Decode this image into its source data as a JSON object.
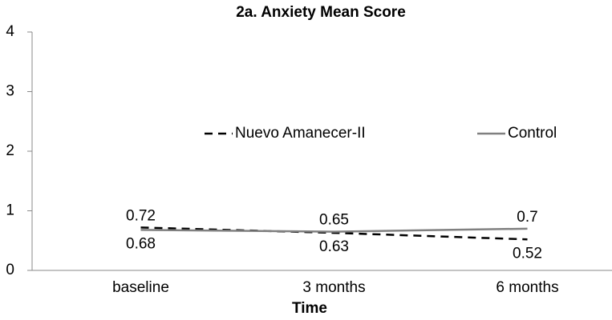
{
  "chart_data": {
    "type": "line",
    "title": "2a. Anxiety Mean Score",
    "x_label": "Time",
    "categories": [
      "baseline",
      "3 months",
      "6 months"
    ],
    "series": [
      {
        "name": "Nuevo Amanecer-II",
        "color": "#000000",
        "linestyle": "dashed",
        "values": [
          0.72,
          0.63,
          0.52
        ]
      },
      {
        "name": "Control",
        "color": "#808080",
        "linestyle": "solid",
        "values": [
          0.68,
          0.65,
          0.7
        ]
      }
    ],
    "ylim": [
      0,
      4
    ],
    "yticks": [
      0,
      1,
      2,
      3,
      4
    ],
    "grid": false,
    "legend": "center"
  }
}
